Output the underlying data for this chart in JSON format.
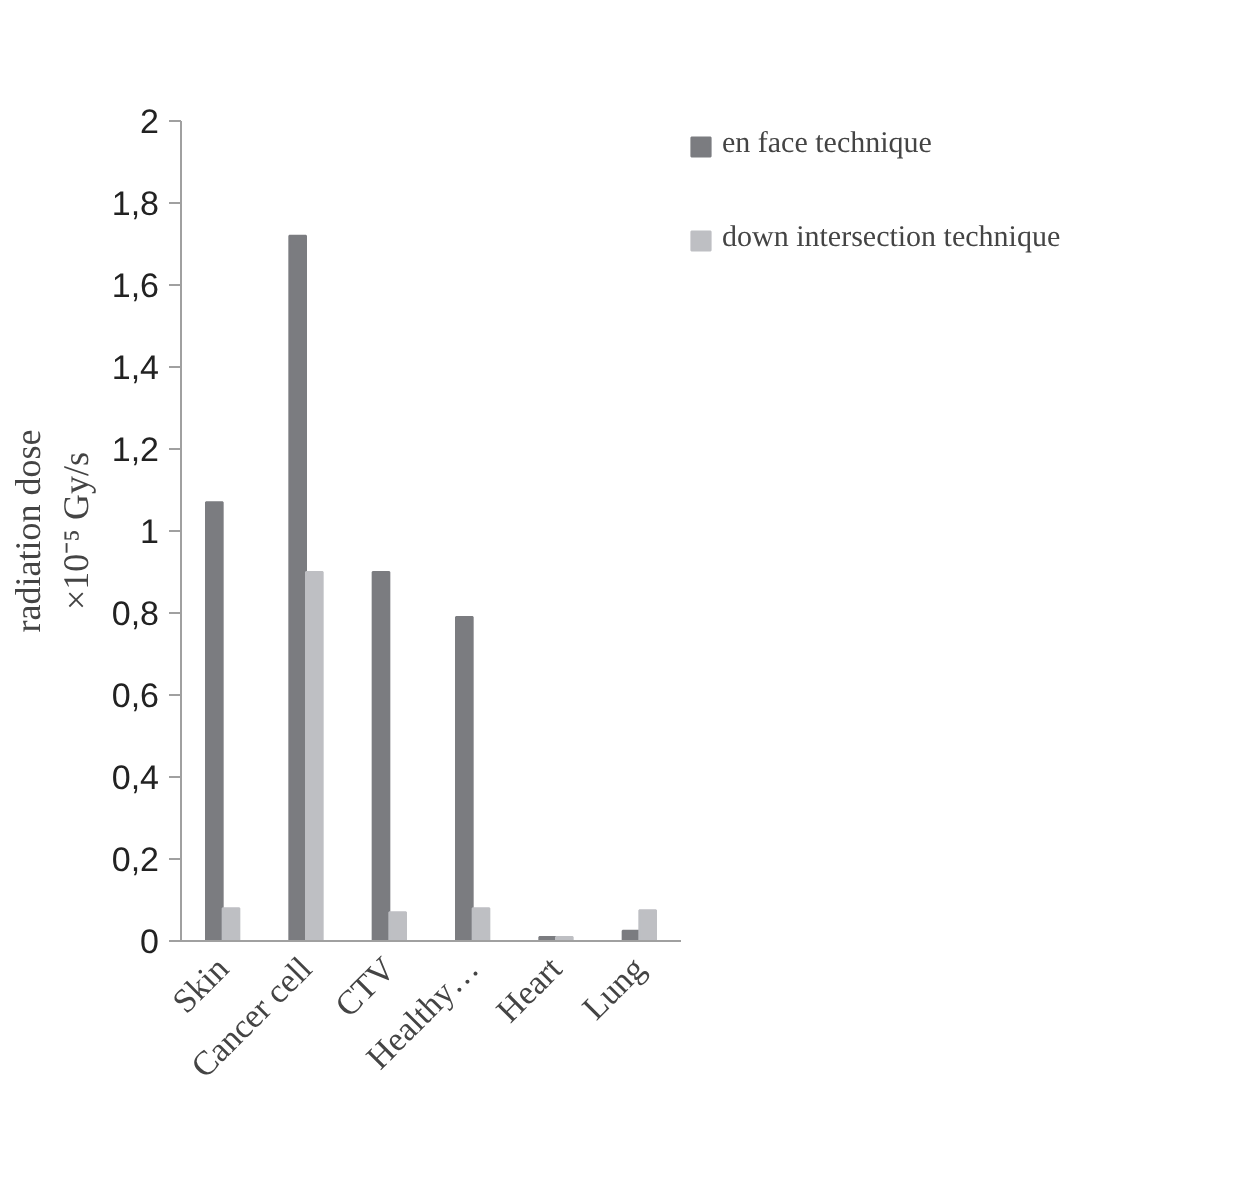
{
  "chart_data": {
    "type": "bar",
    "ylabel": "radiation dose\n×10⁻⁵ Gy/s",
    "categories": [
      "Skin",
      "Cancer cell",
      "CTV",
      "Healthy…",
      "Heart",
      "Lung"
    ],
    "series": [
      {
        "name": "en face technique",
        "color": "#7b7c80",
        "values": [
          1.07,
          1.72,
          0.9,
          0.79,
          0.01,
          0.025
        ]
      },
      {
        "name": "down intersection technique",
        "color": "#bebfc3",
        "values": [
          0.08,
          0.9,
          0.07,
          0.08,
          0.01,
          0.075
        ]
      }
    ],
    "ylim": [
      0,
      2
    ],
    "yticks": [
      0,
      {
        "value": 0.2,
        "label": "0,2"
      },
      {
        "value": 0.4,
        "label": "0,4"
      },
      {
        "value": 0.6,
        "label": "0,6"
      },
      {
        "value": 0.8,
        "label": "0,8"
      },
      1,
      {
        "value": 1.2,
        "label": "1,2"
      },
      {
        "value": 1.4,
        "label": "1,4"
      },
      {
        "value": 1.6,
        "label": "1,6"
      },
      {
        "value": 1.8,
        "label": "1,8"
      },
      2
    ],
    "legend": "right"
  }
}
